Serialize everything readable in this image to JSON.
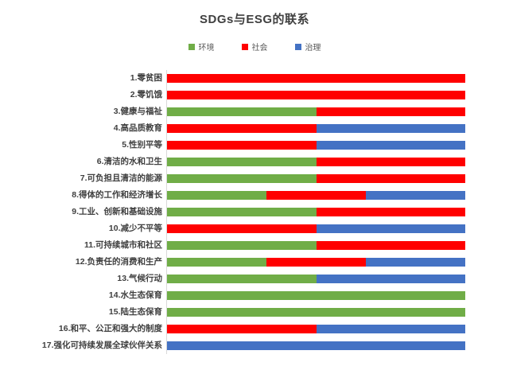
{
  "page": {
    "background_color": "#ffffff"
  },
  "chart_data": {
    "type": "bar",
    "orientation": "horizontal",
    "stacked": true,
    "stack_mode": "percent",
    "title": "SDGs与ESG的联系",
    "legend_position": "top",
    "grid": false,
    "axis_line_color": "#d9d9d9",
    "title_color": "#404040",
    "label_color": "#404040",
    "categories": [
      "1.零贫困",
      "2.零饥饿",
      "3.健康与福祉",
      "4.高品质教育",
      "5.性别平等",
      "6.清洁的水和卫生",
      "7.可负担且清洁的能源",
      "8.得体的工作和经济增长",
      "9.工业、创新和基础设施",
      "10.减少不平等",
      "11.可持续城市和社区",
      "12.负责任的消费和生产",
      "13.气候行动",
      "14.水生态保育",
      "15.陆生态保育",
      "16.和平、公正和强大的制度",
      "17.强化可持续发展全球伙伴关系"
    ],
    "series": [
      {
        "name": "环境",
        "color": "#70ad47",
        "values": [
          0,
          0,
          1,
          0,
          0,
          1,
          1,
          1,
          1,
          0,
          1,
          1,
          1,
          1,
          1,
          0,
          0
        ]
      },
      {
        "name": "社会",
        "color": "#ff0000",
        "values": [
          1,
          1,
          1,
          1,
          1,
          1,
          1,
          1,
          1,
          1,
          1,
          1,
          0,
          0,
          0,
          1,
          0
        ]
      },
      {
        "name": "治理",
        "color": "#4472c4",
        "values": [
          0,
          0,
          0,
          1,
          1,
          0,
          0,
          1,
          0,
          1,
          0,
          1,
          1,
          0,
          0,
          1,
          1
        ]
      }
    ]
  }
}
